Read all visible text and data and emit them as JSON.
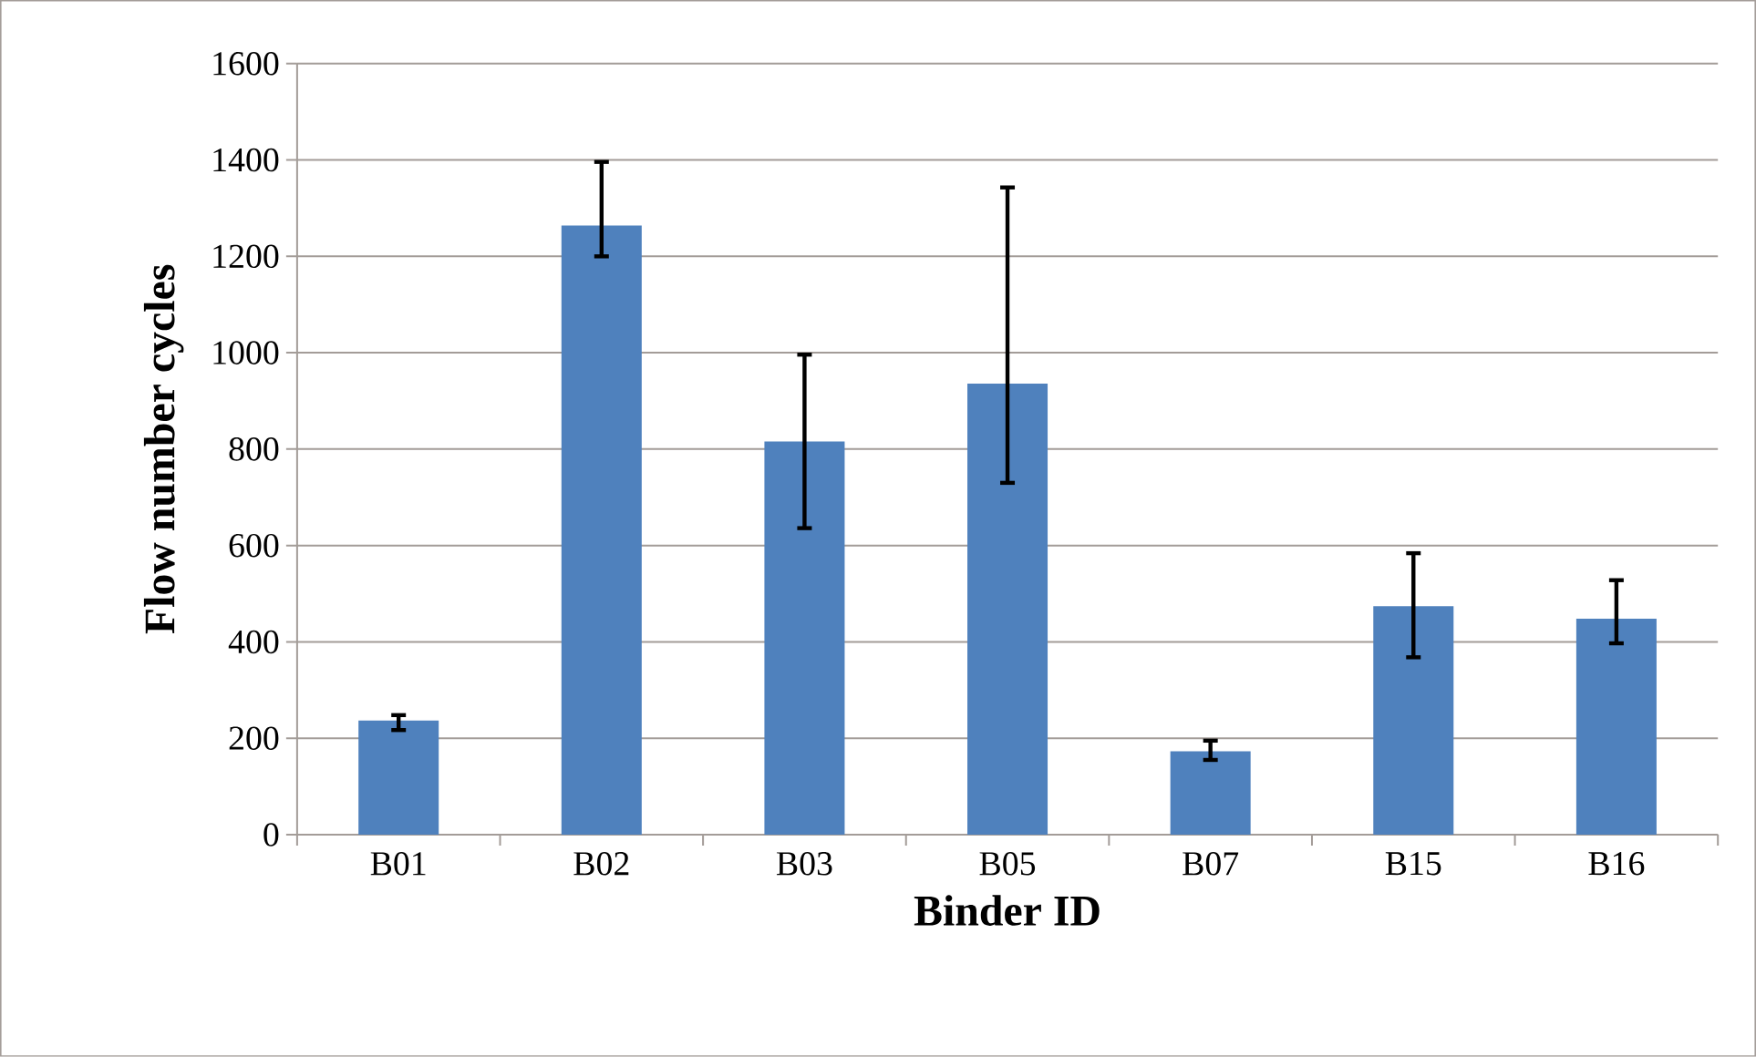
{
  "chart_data": {
    "type": "bar",
    "xlabel": "Binder ID",
    "ylabel": "Flow number cycles",
    "categories": [
      "B01",
      "B02",
      "B03",
      "B05",
      "B07",
      "B15",
      "B16"
    ],
    "values": [
      237,
      1264,
      816,
      936,
      173,
      474,
      448
    ],
    "errors": [
      [
        217,
        248
      ],
      [
        1200,
        1396
      ],
      [
        636,
        996
      ],
      [
        730,
        1343
      ],
      [
        155,
        195
      ],
      [
        368,
        584
      ],
      [
        397,
        528
      ]
    ],
    "color": "#4f81bd",
    "ylim": [
      0,
      1600
    ],
    "yticks": [
      0,
      200,
      400,
      600,
      800,
      1000,
      1200,
      1400,
      1600
    ],
    "grid": "y"
  }
}
